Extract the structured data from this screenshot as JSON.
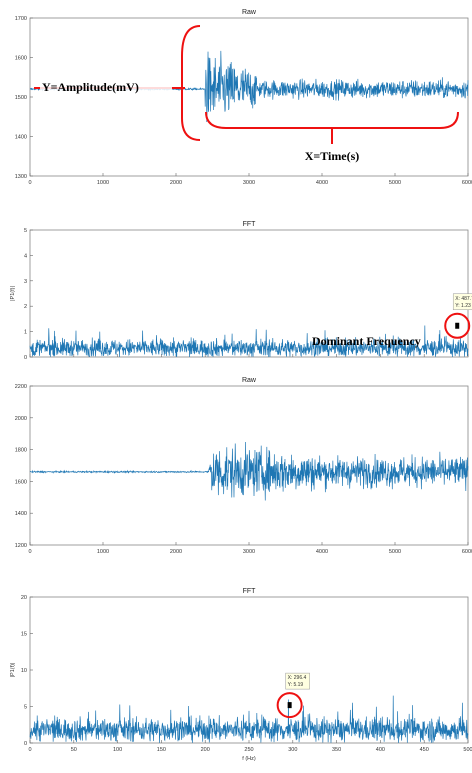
{
  "chart_data": [
    {
      "type": "line",
      "title": "Raw",
      "xlabel": "",
      "ylabel": "",
      "xlim": [
        0,
        6000
      ],
      "ylim": [
        1300,
        1700
      ],
      "xticks": [
        "0",
        "1000",
        "2000",
        "3000",
        "4000",
        "5000",
        "6000"
      ],
      "yticks": [
        "1300",
        "1400",
        "1500",
        "1600",
        "1700"
      ],
      "color": "#1f77b4",
      "signal": {
        "baseline": 1520,
        "onset": 2400,
        "quiet_noise": 4,
        "burst_amp": 160,
        "settle_amp": 40,
        "burst_end": 3100
      },
      "annotations": [
        {
          "text": "Y=Amplitude(mV)"
        },
        {
          "text": "X=Time(s)"
        }
      ]
    },
    {
      "type": "line",
      "title": "FFT",
      "xlabel": "",
      "ylabel": "|P1(f)|",
      "xlim": [
        0,
        500
      ],
      "ylim": [
        0,
        5
      ],
      "xticks": [],
      "yticks": [
        "0",
        "1",
        "2",
        "3",
        "4",
        "5"
      ],
      "color": "#1f77b4",
      "signal": {
        "level": 0.35,
        "noise": 0.3
      },
      "datatip": {
        "x": 487.7,
        "y": 1.23,
        "label_x": "X: 487.7",
        "label_y": "Y: 1.23"
      },
      "annotations": [
        {
          "text": "Dominant Frequency"
        }
      ]
    },
    {
      "type": "line",
      "title": "Raw",
      "xlabel": "",
      "ylabel": "",
      "xlim": [
        0,
        6000
      ],
      "ylim": [
        1200,
        2200
      ],
      "xticks": [
        "0",
        "1000",
        "2000",
        "3000",
        "4000",
        "5000",
        "6000"
      ],
      "yticks": [
        "1200",
        "1400",
        "1600",
        "1800",
        "2000",
        "2200"
      ],
      "color": "#1f77b4",
      "signal": {
        "baseline": 1660,
        "onset": 2450,
        "quiet_noise": 8,
        "burst_amp": 300,
        "settle_amp": 160,
        "burst_end": 4000
      }
    },
    {
      "type": "line",
      "title": "FFT",
      "xlabel": "f (Hz)",
      "ylabel": "|P1(f)|",
      "xlim": [
        0,
        500
      ],
      "ylim": [
        0,
        20
      ],
      "xticks": [
        "0",
        "50",
        "100",
        "150",
        "200",
        "250",
        "300",
        "350",
        "400",
        "450",
        "500"
      ],
      "yticks": [
        "0",
        "5",
        "10",
        "15",
        "20"
      ],
      "color": "#1f77b4",
      "signal": {
        "level": 1.8,
        "noise": 1.4
      },
      "datatip": {
        "x": 296.4,
        "y": 5.19,
        "label_x": "X: 296.4",
        "label_y": "Y: 5.19"
      }
    }
  ]
}
